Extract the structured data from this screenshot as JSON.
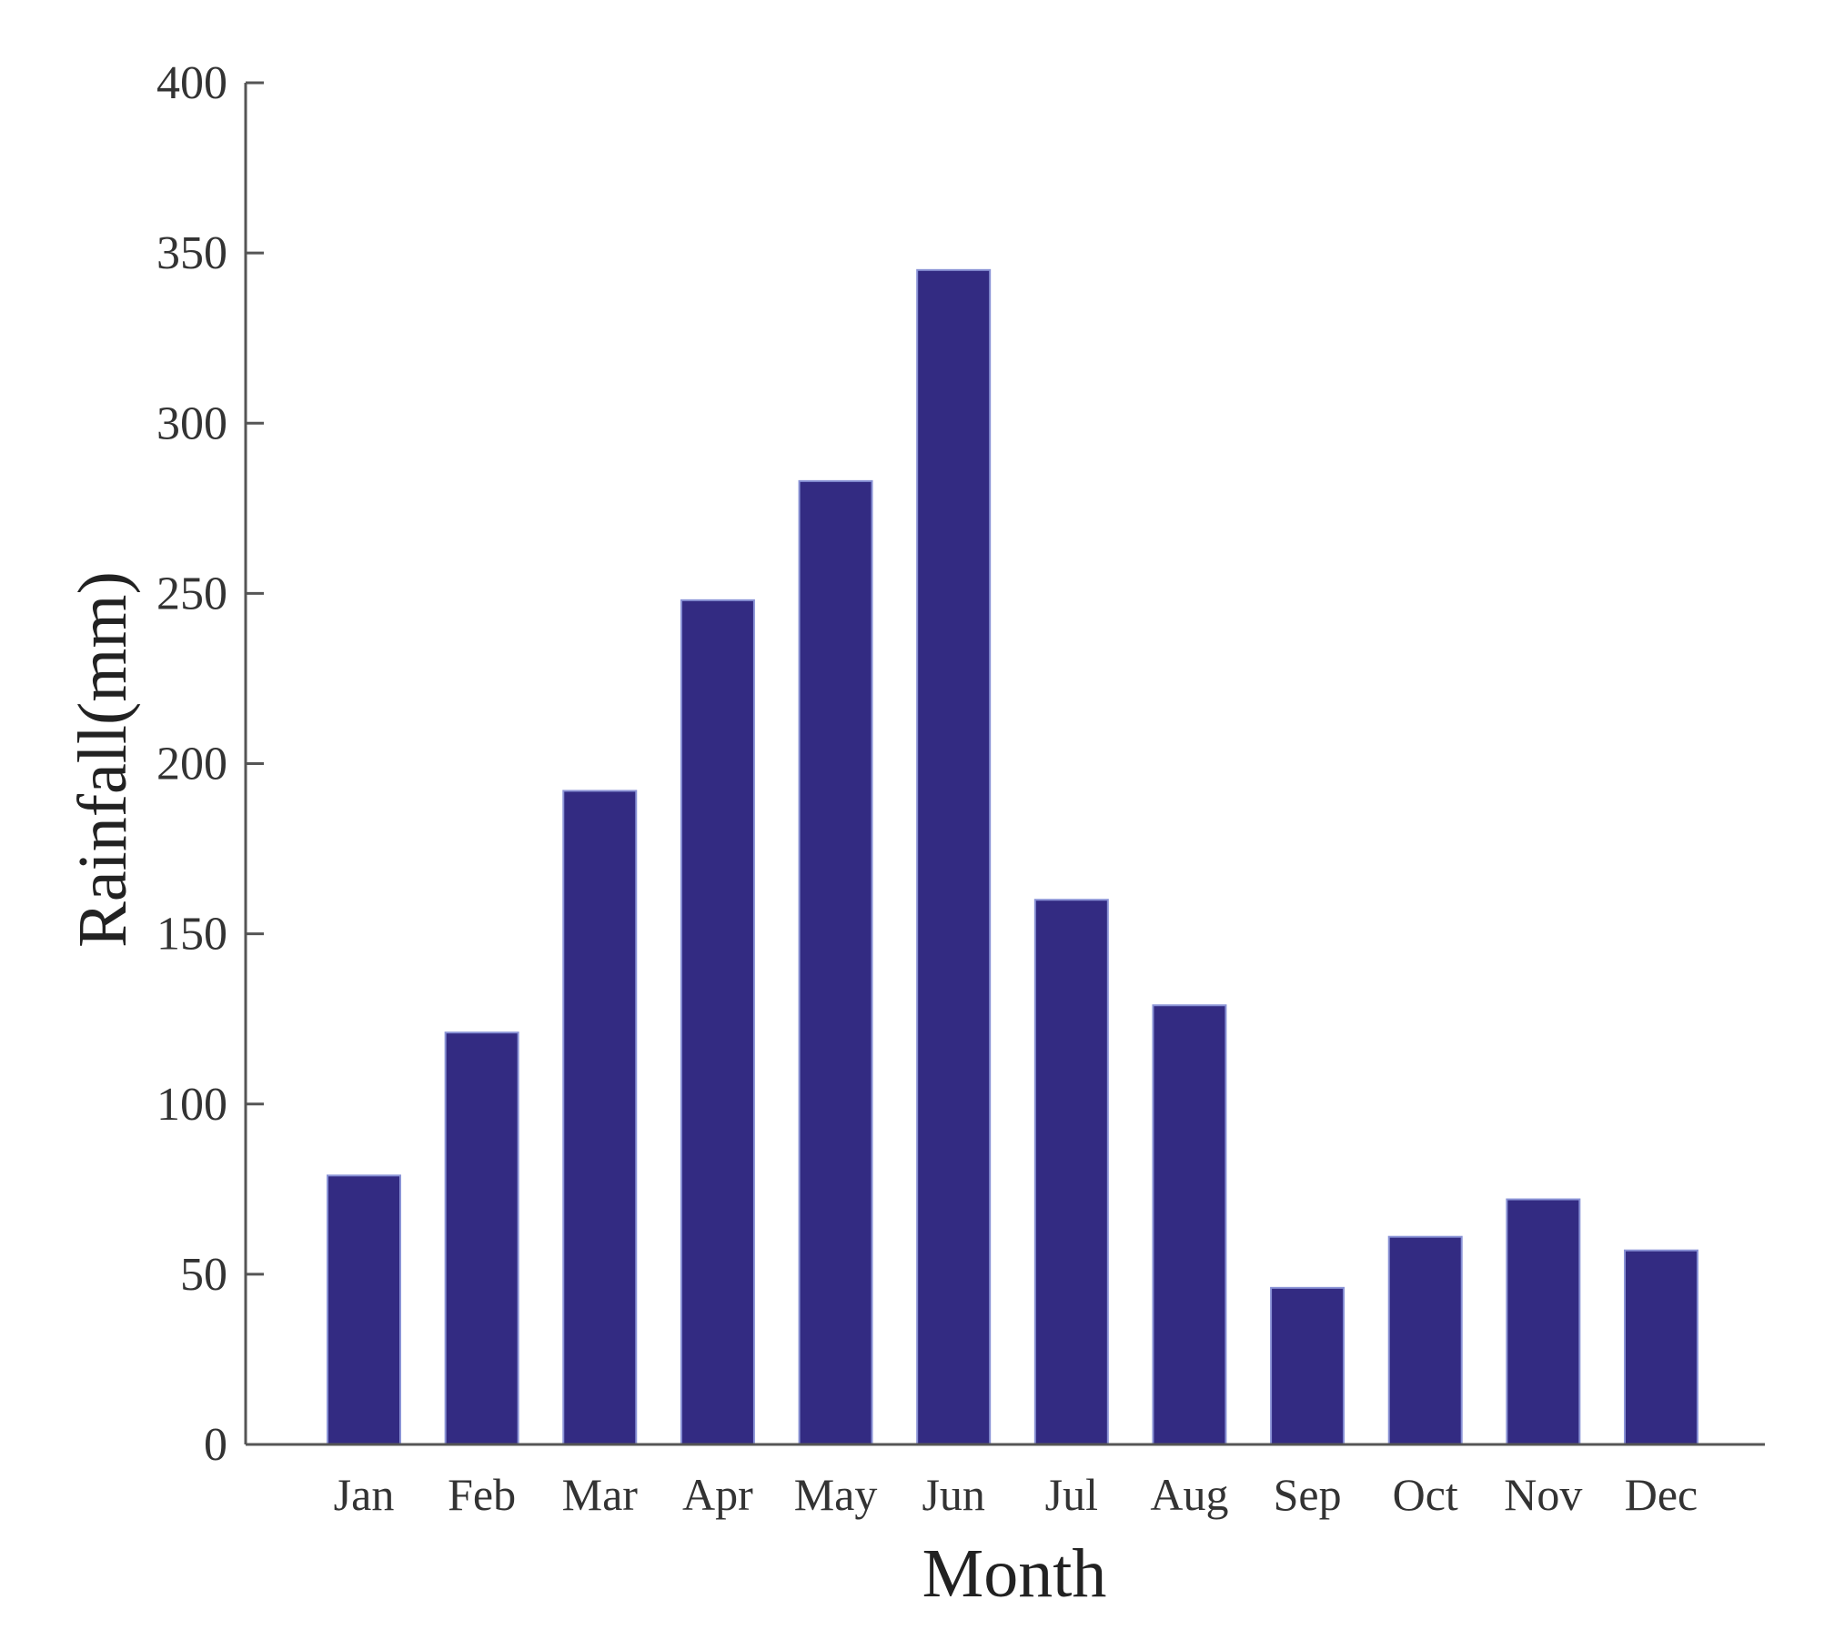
{
  "chart_data": {
    "type": "bar",
    "title": "",
    "xlabel": "Month",
    "ylabel": "Rainfall(mm)",
    "categories": [
      "Jan",
      "Feb",
      "Mar",
      "Apr",
      "May",
      "Jun",
      "Jul",
      "Aug",
      "Sep",
      "Oct",
      "Nov",
      "Dec"
    ],
    "values": [
      79,
      121,
      192,
      248,
      283,
      345,
      160,
      129,
      46,
      61,
      72,
      57
    ],
    "ylim": [
      0,
      400
    ],
    "yticks": [
      0,
      50,
      100,
      150,
      200,
      250,
      300,
      350,
      400
    ],
    "grid": false,
    "bar_color": "#332b82"
  }
}
